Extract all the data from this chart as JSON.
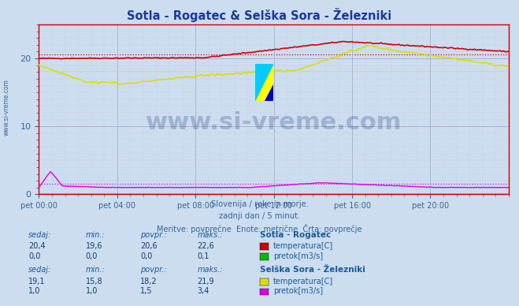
{
  "title": "Sotla - Rogatec & Selška Sora - Železniki",
  "background_color": "#ccddf0",
  "xlabel_ticks": [
    "pet 00:00",
    "pet 04:00",
    "pet 08:00",
    "pet 12:00",
    "pet 16:00",
    "pet 20:00"
  ],
  "ylim": [
    0,
    25
  ],
  "xlim": [
    0,
    288
  ],
  "subtitle_lines": [
    "Slovenija / reke in morje.",
    "zadnji dan / 5 minut.",
    "Meritve: povprečne  Enote: metrične  Črta: povprečje"
  ],
  "watermark_text": "www.si-vreme.com",
  "watermark_color": "#1a3a7a",
  "watermark_alpha": 0.25,
  "watermark_fontsize": 22,
  "table_header_color": "#1a5a9a",
  "table_value_color": "#1a3a6a",
  "station1_name": "Sotla - Rogatec",
  "station1_temp_color": "#cc0000",
  "station1_flow_color": "#00bb00",
  "station1_sedaj": "20,4",
  "station1_min": "19,6",
  "station1_povpr": "20,6",
  "station1_maks": "22,6",
  "station1_sedaj2": "0,0",
  "station1_min2": "0,0",
  "station1_povpr2": "0,0",
  "station1_maks2": "0,1",
  "station2_name": "Selška Sora - Železniki",
  "station2_temp_color": "#dddd00",
  "station2_flow_color": "#dd00dd",
  "station2_sedaj": "19,1",
  "station2_min": "15,8",
  "station2_povpr": "18,2",
  "station2_maks": "21,9",
  "station2_sedaj2": "1,0",
  "station2_min2": "1,0",
  "station2_povpr2": "1,5",
  "station2_maks2": "3,4",
  "avg_rogatec_temp": 20.6,
  "avg_selska_temp": 18.2,
  "avg_selska_flow": 1.5,
  "grid_color": "#aaaacc",
  "grid_minor_color": "#ccccdd",
  "axis_color": "#cc0000",
  "tick_color": "#336699",
  "side_label": "www.si-vreme.com"
}
